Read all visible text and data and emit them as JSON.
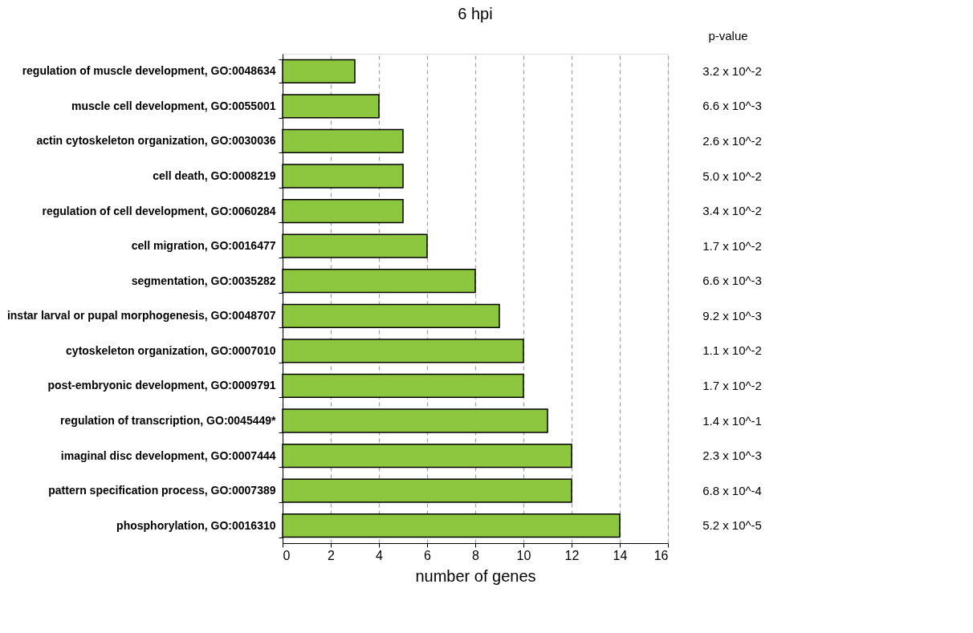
{
  "chart_data": {
    "type": "bar",
    "orientation": "horizontal",
    "title": "6 hpi",
    "xlabel": "number of genes",
    "categories": [
      "regulation of muscle development, GO:0048634",
      "muscle cell development, GO:0055001",
      "actin cytoskeleton organization, GO:0030036",
      "cell death, GO:0008219",
      "regulation of cell development, GO:0060284",
      "cell migration, GO:0016477",
      "segmentation, GO:0035282",
      "instar larval or pupal morphogenesis, GO:0048707",
      "cytoskeleton organization, GO:0007010",
      "post-embryonic development, GO:0009791",
      "regulation of transcription, GO:0045449*",
      "imaginal disc development, GO:0007444",
      "pattern specification process, GO:0007389",
      "phosphorylation, GO:0016310"
    ],
    "values": [
      3,
      4,
      5,
      5,
      5,
      6,
      8,
      9,
      10,
      10,
      11,
      12,
      12,
      14
    ],
    "color": "#8dc63f",
    "xlim": [
      0,
      16
    ],
    "xticks": [
      0,
      2,
      4,
      6,
      8,
      10,
      12,
      14,
      16
    ],
    "grid": "x",
    "annotations": [
      "p-value",
      "3.2 x 10^-2",
      "6.6 x 10^-3",
      "2.6 x 10^-2",
      "5.0 x 10^-2",
      "3.4 x 10^-2",
      "1.7 x 10^-2",
      "6.6 x 10^-3",
      "9.2 x 10^-3",
      "1.1 x 10^-2",
      "1.7 x 10^-2",
      "1.4 x 10^-1",
      "2.3 x 10^-3",
      "6.8 x 10^-4",
      "5.2 x 10^-5"
    ]
  }
}
